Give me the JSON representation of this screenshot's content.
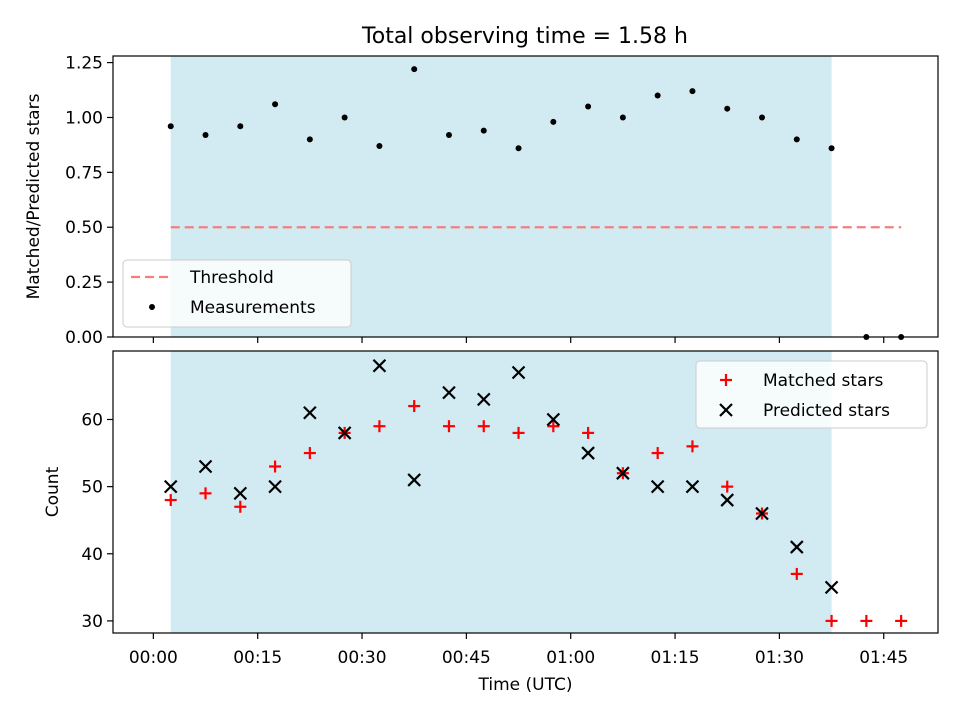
{
  "figure_title": "Total observing time = 1.58 h",
  "x_axis": {
    "label": "Time (UTC)",
    "ticks": [
      {
        "minutes": 0,
        "label": "00:00"
      },
      {
        "minutes": 15,
        "label": "00:15"
      },
      {
        "minutes": 30,
        "label": "00:30"
      },
      {
        "minutes": 45,
        "label": "00:45"
      },
      {
        "minutes": 60,
        "label": "01:00"
      },
      {
        "minutes": 75,
        "label": "01:15"
      },
      {
        "minutes": 90,
        "label": "01:30"
      },
      {
        "minutes": 105,
        "label": "01:45"
      }
    ]
  },
  "colors": {
    "shade": "#add8e6",
    "threshold": "#f08080",
    "measurements": "#000000",
    "matched": "#ff0000",
    "predicted": "#000000"
  },
  "chart_data": [
    {
      "type": "scatter",
      "title": "Total observing time = 1.58 h",
      "xlabel": "",
      "ylabel": "Matched/Predicted stars",
      "ylim": [
        0,
        1.28
      ],
      "yticks": [
        0,
        0.25,
        0.5,
        0.75,
        1.0,
        1.25
      ],
      "ytick_labels": [
        "0.00",
        "0.25",
        "0.50",
        "0.75",
        "1.00",
        "1.25"
      ],
      "shaded_region": {
        "x_start": "00:02:30",
        "x_end": "01:37:30",
        "minutes": [
          2.5,
          97.5
        ]
      },
      "legend": {
        "position": "bottom-left",
        "entries": [
          "Threshold",
          "Measurements"
        ]
      },
      "series": [
        {
          "name": "Threshold",
          "style": "dashed-line",
          "x": [
            "00:02:30",
            "01:47:30"
          ],
          "x_minutes": [
            2.5,
            107.5
          ],
          "y": [
            0.5,
            0.5
          ]
        },
        {
          "name": "Measurements",
          "style": "dot",
          "x": [
            "00:02:30",
            "00:07:30",
            "00:12:30",
            "00:17:30",
            "00:22:30",
            "00:27:30",
            "00:32:30",
            "00:37:30",
            "00:42:30",
            "00:47:30",
            "00:52:30",
            "00:57:30",
            "01:02:30",
            "01:07:30",
            "01:12:30",
            "01:17:30",
            "01:22:30",
            "01:27:30",
            "01:32:30",
            "01:37:30",
            "01:42:30",
            "01:47:30"
          ],
          "x_minutes": [
            2.5,
            7.5,
            12.5,
            17.5,
            22.5,
            27.5,
            32.5,
            37.5,
            42.5,
            47.5,
            52.5,
            57.5,
            62.5,
            67.5,
            72.5,
            77.5,
            82.5,
            87.5,
            92.5,
            97.5,
            102.5,
            107.5
          ],
          "y": [
            0.96,
            0.92,
            0.96,
            1.06,
            0.9,
            1.0,
            0.87,
            1.22,
            0.92,
            0.94,
            0.86,
            0.98,
            1.05,
            1.0,
            1.1,
            1.12,
            1.04,
            1.0,
            0.9,
            0.86,
            0.0,
            0.0
          ]
        }
      ]
    },
    {
      "type": "scatter",
      "title": "",
      "xlabel": "Time (UTC)",
      "ylabel": "Count",
      "ylim": [
        28.2,
        70.2
      ],
      "yticks": [
        30,
        40,
        50,
        60
      ],
      "ytick_labels": [
        "30",
        "40",
        "50",
        "60"
      ],
      "shaded_region": {
        "x_start": "00:02:30",
        "x_end": "01:37:30",
        "minutes": [
          2.5,
          97.5
        ]
      },
      "legend": {
        "position": "top-right",
        "entries": [
          "Matched stars",
          "Predicted stars"
        ]
      },
      "series": [
        {
          "name": "Matched stars",
          "marker": "plus",
          "x": [
            "00:02:30",
            "00:07:30",
            "00:12:30",
            "00:17:30",
            "00:22:30",
            "00:27:30",
            "00:32:30",
            "00:37:30",
            "00:42:30",
            "00:47:30",
            "00:52:30",
            "00:57:30",
            "01:02:30",
            "01:07:30",
            "01:12:30",
            "01:17:30",
            "01:22:30",
            "01:27:30",
            "01:32:30",
            "01:37:30",
            "01:42:30",
            "01:47:30"
          ],
          "x_minutes": [
            2.5,
            7.5,
            12.5,
            17.5,
            22.5,
            27.5,
            32.5,
            37.5,
            42.5,
            47.5,
            52.5,
            57.5,
            62.5,
            67.5,
            72.5,
            77.5,
            82.5,
            87.5,
            92.5,
            97.5,
            102.5,
            107.5
          ],
          "y": [
            48,
            49,
            47,
            53,
            55,
            58,
            59,
            62,
            59,
            59,
            58,
            59,
            58,
            52,
            55,
            56,
            50,
            46,
            37,
            30,
            30,
            30
          ]
        },
        {
          "name": "Predicted stars",
          "marker": "x",
          "x": [
            "00:02:30",
            "00:07:30",
            "00:12:30",
            "00:17:30",
            "00:22:30",
            "00:27:30",
            "00:32:30",
            "00:37:30",
            "00:42:30",
            "00:47:30",
            "00:52:30",
            "00:57:30",
            "01:02:30",
            "01:07:30",
            "01:12:30",
            "01:17:30",
            "01:22:30",
            "01:27:30",
            "01:32:30",
            "01:37:30"
          ],
          "x_minutes": [
            2.5,
            7.5,
            12.5,
            17.5,
            22.5,
            27.5,
            32.5,
            37.5,
            42.5,
            47.5,
            52.5,
            57.5,
            62.5,
            67.5,
            72.5,
            77.5,
            82.5,
            87.5,
            92.5,
            97.5
          ],
          "y": [
            50,
            53,
            49,
            50,
            61,
            58,
            68,
            51,
            64,
            63,
            67,
            60,
            55,
            52,
            50,
            50,
            48,
            46,
            41,
            35
          ]
        }
      ]
    }
  ]
}
